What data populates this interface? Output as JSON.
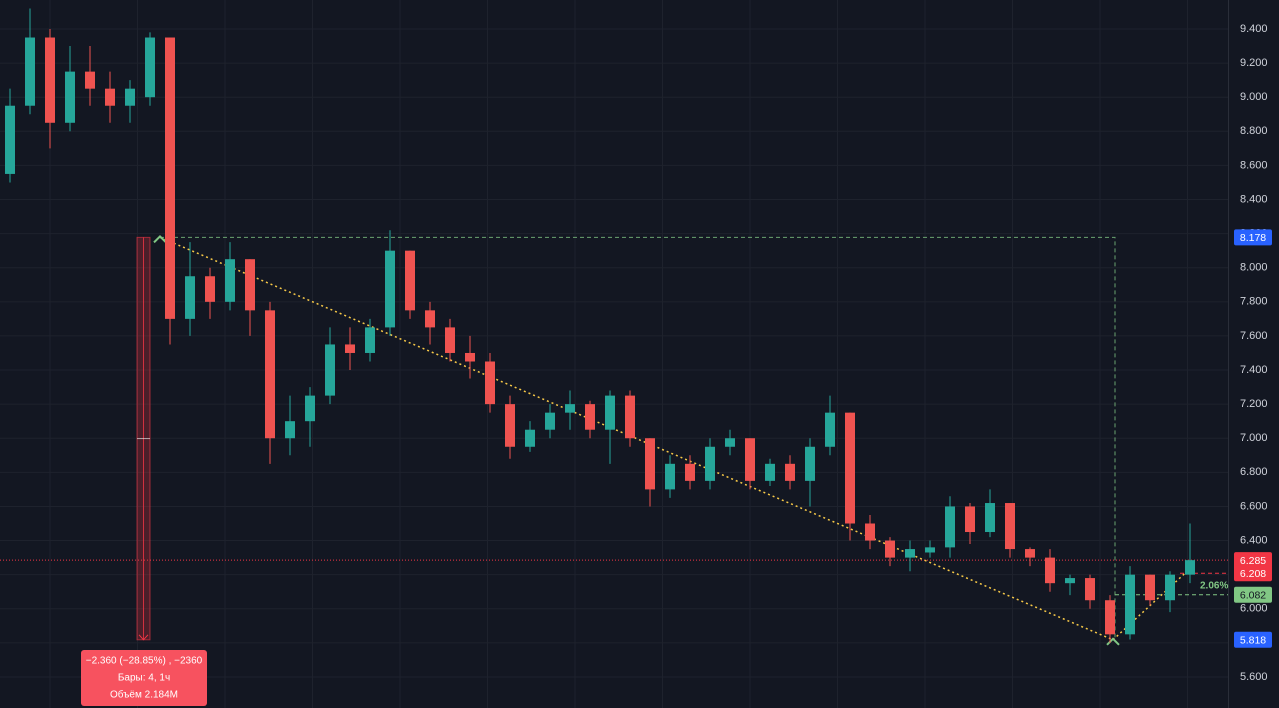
{
  "chart_data": {
    "type": "candlestick",
    "up_color": "#26a69a",
    "down_color": "#ef5350",
    "open": [
      8.55,
      8.95,
      9.35,
      8.85,
      9.15,
      9.05,
      8.95,
      9.0,
      9.35,
      7.7,
      7.95,
      7.8,
      8.05,
      7.75,
      7.0,
      7.1,
      7.25,
      7.55,
      7.5,
      7.65,
      8.1,
      7.75,
      7.65,
      7.5,
      7.45,
      7.2,
      6.95,
      7.05,
      7.15,
      7.2,
      7.05,
      7.25,
      7.0,
      6.7,
      6.85,
      6.75,
      6.95,
      7.0,
      6.75,
      6.85,
      6.75,
      6.95,
      7.15,
      6.5,
      6.4,
      6.3,
      6.33,
      6.36,
      6.6,
      6.45,
      6.62,
      6.35,
      6.3,
      6.15,
      6.18,
      6.05,
      5.85,
      6.2,
      6.05,
      6.2
    ],
    "high": [
      9.05,
      9.52,
      9.4,
      9.3,
      9.3,
      9.15,
      9.1,
      9.38,
      9.35,
      8.15,
      8.0,
      8.15,
      8.05,
      7.8,
      7.25,
      7.3,
      7.65,
      7.65,
      7.7,
      8.22,
      8.1,
      7.8,
      7.7,
      7.6,
      7.5,
      7.25,
      7.1,
      7.2,
      7.28,
      7.22,
      7.28,
      7.28,
      7.0,
      6.9,
      6.9,
      7.0,
      7.05,
      7.0,
      6.88,
      6.9,
      7.0,
      7.25,
      7.15,
      6.55,
      6.42,
      6.4,
      6.4,
      6.66,
      6.62,
      6.7,
      6.62,
      6.36,
      6.35,
      6.2,
      6.2,
      6.08,
      6.25,
      6.2,
      6.22,
      6.5
    ],
    "low": [
      8.5,
      8.9,
      8.7,
      8.8,
      8.95,
      8.85,
      8.85,
      8.95,
      7.55,
      7.6,
      7.7,
      7.75,
      7.6,
      6.85,
      6.9,
      6.95,
      7.2,
      7.4,
      7.45,
      7.6,
      7.7,
      7.55,
      7.45,
      7.35,
      7.15,
      6.88,
      6.92,
      7.0,
      7.05,
      7.0,
      6.85,
      6.95,
      6.6,
      6.65,
      6.7,
      6.7,
      6.9,
      6.7,
      6.72,
      6.7,
      6.6,
      6.9,
      6.4,
      6.35,
      6.25,
      6.22,
      6.3,
      6.3,
      6.38,
      6.42,
      6.3,
      6.25,
      6.1,
      6.08,
      6.0,
      5.8,
      5.82,
      6.02,
      5.98,
      6.15
    ],
    "close": [
      8.95,
      9.35,
      8.85,
      9.15,
      9.05,
      8.95,
      9.05,
      9.35,
      7.7,
      7.95,
      7.8,
      8.05,
      7.75,
      7.0,
      7.1,
      7.25,
      7.55,
      7.5,
      7.65,
      8.1,
      7.75,
      7.65,
      7.5,
      7.45,
      7.2,
      6.95,
      7.05,
      7.15,
      7.2,
      7.05,
      7.25,
      7.0,
      6.7,
      6.85,
      6.75,
      6.95,
      7.0,
      6.75,
      6.85,
      6.75,
      6.95,
      7.15,
      6.5,
      6.4,
      6.3,
      6.35,
      6.36,
      6.6,
      6.45,
      6.62,
      6.35,
      6.3,
      6.15,
      6.18,
      6.05,
      5.85,
      6.2,
      6.05,
      6.2,
      6.285
    ],
    "ylim": [
      5.418,
      9.57
    ],
    "yticks": [
      {
        "value": 5.6,
        "label": "5.600"
      },
      {
        "value": 5.8,
        "label": "5.800"
      },
      {
        "value": 6.0,
        "label": "6.000"
      },
      {
        "value": 6.2,
        "label": "6.200"
      },
      {
        "value": 6.4,
        "label": "6.400"
      },
      {
        "value": 6.6,
        "label": "6.600"
      },
      {
        "value": 6.8,
        "label": "6.800"
      },
      {
        "value": 7.0,
        "label": "7.000"
      },
      {
        "value": 7.2,
        "label": "7.200"
      },
      {
        "value": 7.4,
        "label": "7.400"
      },
      {
        "value": 7.6,
        "label": "7.600"
      },
      {
        "value": 7.8,
        "label": "7.800"
      },
      {
        "value": 8.0,
        "label": "8.000"
      },
      {
        "value": 8.2,
        "label": "8.200"
      },
      {
        "value": 8.4,
        "label": "8.400"
      },
      {
        "value": 8.6,
        "label": "8.600"
      },
      {
        "value": 8.8,
        "label": "8.800"
      },
      {
        "value": 9.0,
        "label": "9.000"
      },
      {
        "value": 9.2,
        "label": "9.200"
      },
      {
        "value": 9.4,
        "label": "9.400"
      }
    ],
    "grid": true,
    "price_labels": [
      {
        "value": 8.178,
        "color": "#2962ff"
      },
      {
        "value": 6.285,
        "color": "#f23645"
      },
      {
        "value": 6.208,
        "color": "#f23645"
      },
      {
        "value": 6.082,
        "color": "#81c784"
      },
      {
        "value": 5.818,
        "color": "#2962ff"
      }
    ],
    "measure": [
      "−2.360 (−28.85%) , −2360",
      "Бары: 4, 1ч",
      "Объём 2.184M"
    ],
    "percent_label": "2.06%"
  }
}
